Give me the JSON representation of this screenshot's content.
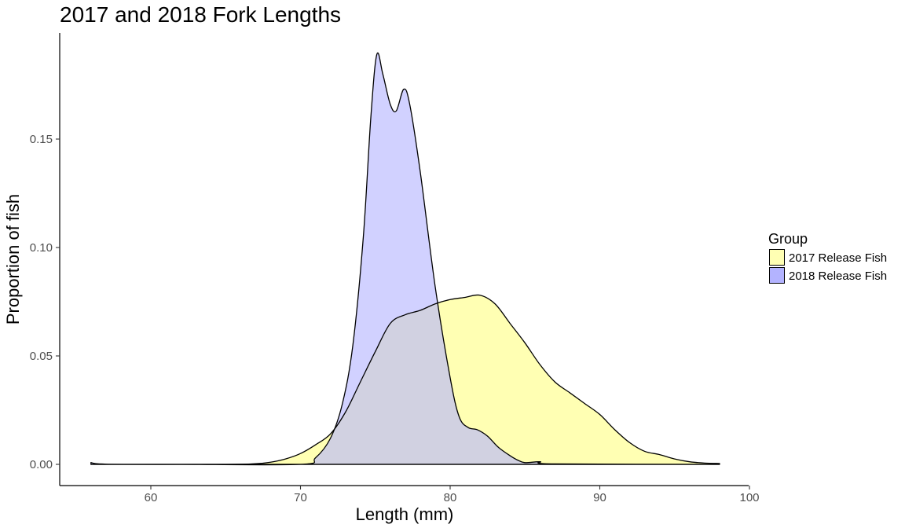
{
  "chart_data": {
    "type": "area",
    "subtype": "density",
    "title": "2017 and 2018 Fork Lengths",
    "xlabel": "Length (mm)",
    "ylabel": "Proportion of fish",
    "xlim": [
      56,
      98
    ],
    "ylim": [
      0,
      0.19
    ],
    "x_ticks": [
      60,
      70,
      80,
      90,
      100
    ],
    "y_ticks": [
      0.0,
      0.05,
      0.1,
      0.15
    ],
    "x_tick_labels": [
      "60",
      "70",
      "80",
      "90",
      "100"
    ],
    "y_tick_labels": [
      "0.00",
      "0.05",
      "0.10",
      "0.15"
    ],
    "grid": false,
    "legend": {
      "title": "Group",
      "position": "right"
    },
    "series": [
      {
        "name": "2017 Release Fish",
        "fill": "#ffffb3",
        "points": [
          [
            56,
            0.0
          ],
          [
            65,
            0.0
          ],
          [
            67,
            0.0003
          ],
          [
            68,
            0.001
          ],
          [
            69,
            0.0025
          ],
          [
            70,
            0.005
          ],
          [
            71,
            0.009
          ],
          [
            72,
            0.014
          ],
          [
            73,
            0.024
          ],
          [
            74,
            0.038
          ],
          [
            75,
            0.052
          ],
          [
            76,
            0.065
          ],
          [
            77,
            0.069
          ],
          [
            78,
            0.071
          ],
          [
            79,
            0.074
          ],
          [
            80,
            0.076
          ],
          [
            81,
            0.077
          ],
          [
            82,
            0.078
          ],
          [
            83,
            0.074
          ],
          [
            84,
            0.065
          ],
          [
            85,
            0.056
          ],
          [
            86,
            0.046
          ],
          [
            87,
            0.038
          ],
          [
            88,
            0.033
          ],
          [
            89,
            0.028
          ],
          [
            90,
            0.023
          ],
          [
            91,
            0.016
          ],
          [
            92,
            0.01
          ],
          [
            93,
            0.006
          ],
          [
            94,
            0.0045
          ],
          [
            95,
            0.0025
          ],
          [
            96,
            0.0012
          ],
          [
            97,
            0.0006
          ],
          [
            98,
            0.0004
          ]
        ]
      },
      {
        "name": "2018 Release Fish",
        "fill": "#b3b3ff",
        "points": [
          [
            56,
            0.0008
          ],
          [
            57,
            0.0001
          ],
          [
            62,
            0.0
          ],
          [
            70,
            0.0
          ],
          [
            71,
            0.003
          ],
          [
            72,
            0.012
          ],
          [
            72.8,
            0.028
          ],
          [
            73.5,
            0.055
          ],
          [
            74.2,
            0.105
          ],
          [
            74.7,
            0.16
          ],
          [
            75.1,
            0.189
          ],
          [
            75.5,
            0.18
          ],
          [
            76,
            0.166
          ],
          [
            76.4,
            0.163
          ],
          [
            76.9,
            0.173
          ],
          [
            77.3,
            0.166
          ],
          [
            78,
            0.135
          ],
          [
            79,
            0.082
          ],
          [
            80,
            0.04
          ],
          [
            80.6,
            0.022
          ],
          [
            81.2,
            0.017
          ],
          [
            81.8,
            0.016
          ],
          [
            82.5,
            0.013
          ],
          [
            83.2,
            0.008
          ],
          [
            84,
            0.004
          ],
          [
            84.5,
            0.002
          ],
          [
            85,
            0.0008
          ],
          [
            86,
            0.0012
          ],
          [
            87,
            0.0002
          ],
          [
            98,
            0.0
          ]
        ]
      }
    ]
  }
}
